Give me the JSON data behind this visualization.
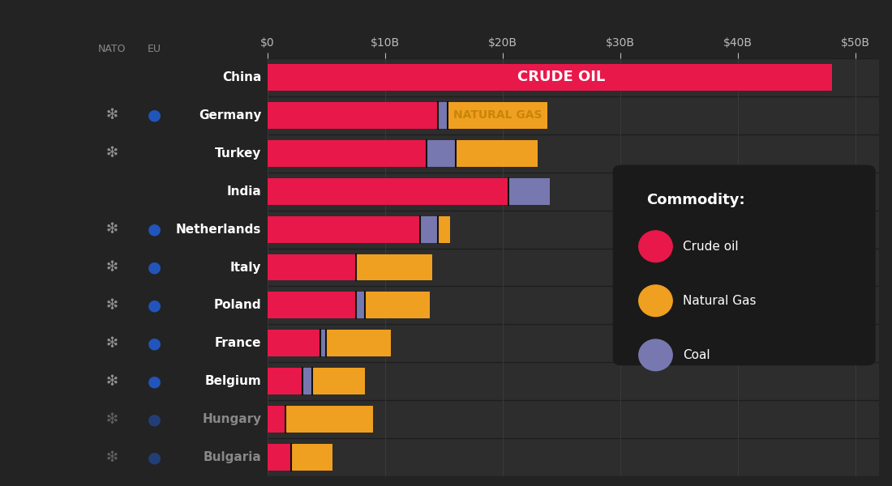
{
  "countries": [
    "China",
    "Germany",
    "Turkey",
    "India",
    "Netherlands",
    "Italy",
    "Poland",
    "France",
    "Belgium",
    "Hungary",
    "Bulgaria"
  ],
  "crude_oil": [
    48.0,
    14.5,
    13.5,
    20.5,
    13.0,
    7.5,
    7.5,
    4.5,
    3.0,
    1.5,
    2.0
  ],
  "coal": [
    0.0,
    0.8,
    2.5,
    3.5,
    1.5,
    0.0,
    0.8,
    0.5,
    0.8,
    0.0,
    0.0
  ],
  "natural_gas": [
    0.0,
    8.5,
    7.0,
    0.0,
    1.0,
    6.5,
    5.5,
    5.5,
    4.5,
    7.5,
    3.5
  ],
  "color_crude": "#e8184a",
  "color_gas": "#f0a020",
  "color_coal": "#7878b0",
  "background_color": "#232323",
  "chart_bg": "#2d2d2d",
  "text_color_white": "#ffffff",
  "text_color_dim": "#888888",
  "axis_label_color": "#bbbbbb",
  "crude_label": "CRUDE OIL",
  "gas_label": "NATURAL GAS",
  "legend_title": "Commodity:",
  "legend_items": [
    "Crude oil",
    "Natural Gas",
    "Coal"
  ],
  "x_ticks": [
    0,
    10,
    20,
    30,
    40,
    50
  ],
  "x_tick_labels": [
    "$0",
    "$10B",
    "$20B",
    "$30B",
    "$40B",
    "$50B"
  ],
  "xlim": [
    0,
    52
  ],
  "nato_members": [
    false,
    true,
    true,
    false,
    true,
    true,
    true,
    true,
    true,
    true,
    true
  ],
  "eu_members": [
    false,
    true,
    false,
    false,
    true,
    true,
    true,
    true,
    true,
    true,
    true
  ],
  "dim_countries": [
    "Hungary",
    "Bulgaria"
  ]
}
